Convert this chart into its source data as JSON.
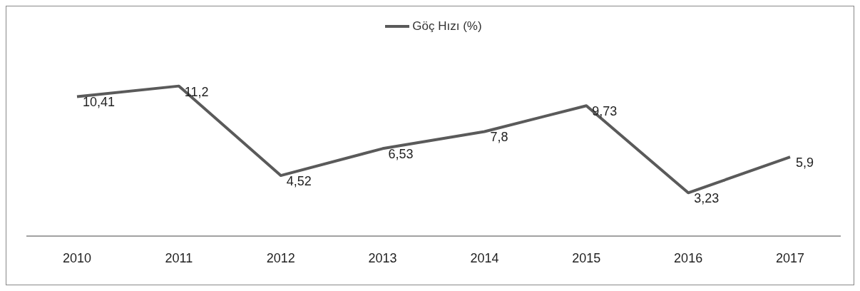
{
  "chart_data": {
    "type": "line",
    "categories": [
      "2010",
      "2011",
      "2012",
      "2013",
      "2014",
      "2015",
      "2016",
      "2017"
    ],
    "series": [
      {
        "name": "Göç Hızı (%)",
        "color": "#5a5a5a",
        "values": [
          10.41,
          11.2,
          4.52,
          6.53,
          7.8,
          9.73,
          3.23,
          5.9
        ],
        "value_labels": [
          "10,41",
          "11,2",
          "4,52",
          "6,53",
          "7,8",
          "9,73",
          "3,23",
          "5,9"
        ]
      }
    ],
    "legend": "top",
    "marker": "none",
    "line_style": "solid",
    "tick_labels": "x"
  }
}
